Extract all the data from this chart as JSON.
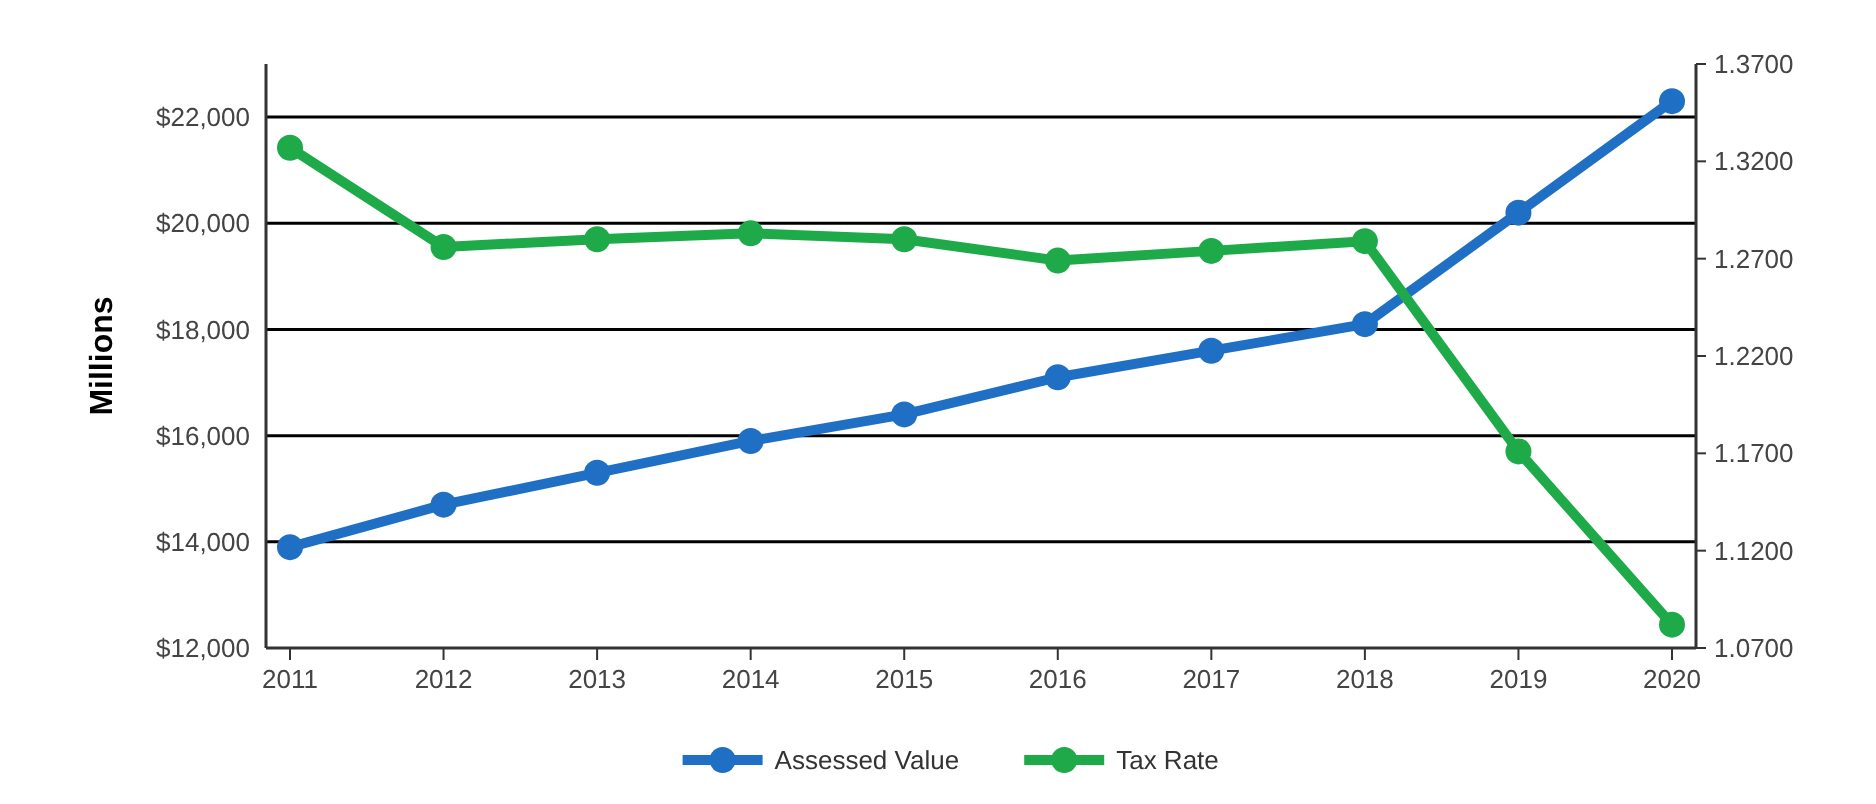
{
  "chart_data": {
    "type": "line",
    "ylabel": "Millions",
    "categories": [
      "2011",
      "2012",
      "2013",
      "2014",
      "2015",
      "2016",
      "2017",
      "2018",
      "2019",
      "2020"
    ],
    "series": [
      {
        "name": "Assessed Value",
        "color": "#1f6fc5",
        "values": [
          13900,
          14700,
          15300,
          15900,
          16400,
          17100,
          17600,
          18100,
          20200,
          22300
        ]
      },
      {
        "name": "Tax Rate",
        "color": "#1faa4a",
        "axis": "y2",
        "values": [
          1.327,
          1.276,
          1.28,
          1.283,
          1.28,
          1.269,
          1.274,
          1.279,
          1.171,
          1.082
        ]
      }
    ],
    "ylim": [
      12000,
      23000
    ],
    "yticks": [
      {
        "value": 12000,
        "label": "$12,000"
      },
      {
        "value": 14000,
        "label": "$14,000"
      },
      {
        "value": 16000,
        "label": "$16,000"
      },
      {
        "value": 18000,
        "label": "$18,000"
      },
      {
        "value": 20000,
        "label": "$20,000"
      },
      {
        "value": 22000,
        "label": "$22,000"
      }
    ],
    "y2lim": [
      1.07,
      1.37
    ],
    "y2ticks": [
      {
        "value": 1.07,
        "label": "1.0700"
      },
      {
        "value": 1.12,
        "label": "1.1200"
      },
      {
        "value": 1.17,
        "label": "1.1700"
      },
      {
        "value": 1.22,
        "label": "1.2200"
      },
      {
        "value": 1.27,
        "label": "1.2700"
      },
      {
        "value": 1.32,
        "label": "1.3200"
      },
      {
        "value": 1.37,
        "label": "1.3700"
      }
    ],
    "grid": "y",
    "legend": "bottom",
    "marker": "circle",
    "line_style": "solid"
  }
}
